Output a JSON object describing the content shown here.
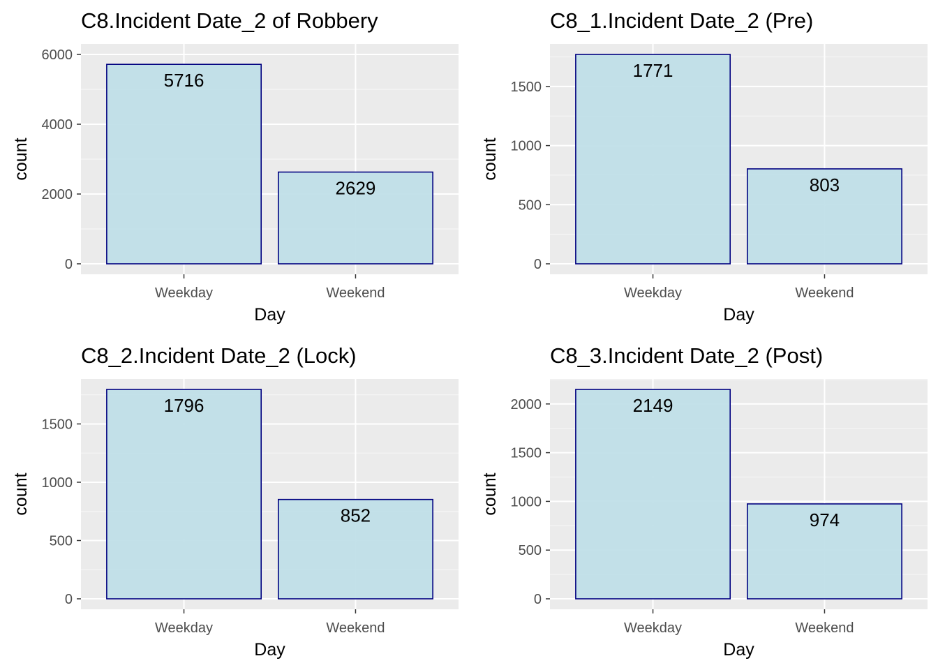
{
  "chart_data": [
    {
      "type": "bar",
      "title": "C8.Incident Date_2 of Robbery",
      "xlabel": "Day",
      "ylabel": "count",
      "categories": [
        "Weekday",
        "Weekend"
      ],
      "values": [
        5716,
        2629
      ],
      "data_labels": [
        "5716",
        "2629"
      ],
      "ylim": [
        0,
        6000
      ],
      "yticks": [
        0,
        2000,
        4000,
        6000
      ],
      "ytick_labels": [
        "0",
        "2000",
        "4000",
        "6000"
      ],
      "grid": true
    },
    {
      "type": "bar",
      "title": "C8_1.Incident Date_2 (Pre)",
      "xlabel": "Day",
      "ylabel": "count",
      "categories": [
        "Weekday",
        "Weekend"
      ],
      "values": [
        1771,
        803
      ],
      "data_labels": [
        "1771",
        "803"
      ],
      "ylim": [
        0,
        1771
      ],
      "yticks": [
        0,
        500,
        1000,
        1500
      ],
      "ytick_labels": [
        "0",
        "500",
        "1000",
        "1500"
      ],
      "grid": true
    },
    {
      "type": "bar",
      "title": "C8_2.Incident Date_2 (Lock)",
      "xlabel": "Day",
      "ylabel": "count",
      "categories": [
        "Weekday",
        "Weekend"
      ],
      "values": [
        1796,
        852
      ],
      "data_labels": [
        "1796",
        "852"
      ],
      "ylim": [
        0,
        1796
      ],
      "yticks": [
        0,
        500,
        1000,
        1500
      ],
      "ytick_labels": [
        "0",
        "500",
        "1000",
        "1500"
      ],
      "grid": true
    },
    {
      "type": "bar",
      "title": "C8_3.Incident Date_2 (Post)",
      "xlabel": "Day",
      "ylabel": "count",
      "categories": [
        "Weekday",
        "Weekend"
      ],
      "values": [
        2149,
        974
      ],
      "data_labels": [
        "2149",
        "974"
      ],
      "ylim": [
        0,
        2149
      ],
      "yticks": [
        0,
        500,
        1000,
        1500,
        2000
      ],
      "ytick_labels": [
        "0",
        "500",
        "1000",
        "1500",
        "2000"
      ],
      "grid": true
    }
  ],
  "colors": {
    "bar_fill": "#c0dfe8",
    "bar_stroke": "#000080",
    "panel_background": "#ebebeb",
    "grid_major": "#ffffff",
    "grid_minor": "#f5f5f5",
    "tick_text": "#4d4d4d",
    "title_text": "#000000"
  }
}
